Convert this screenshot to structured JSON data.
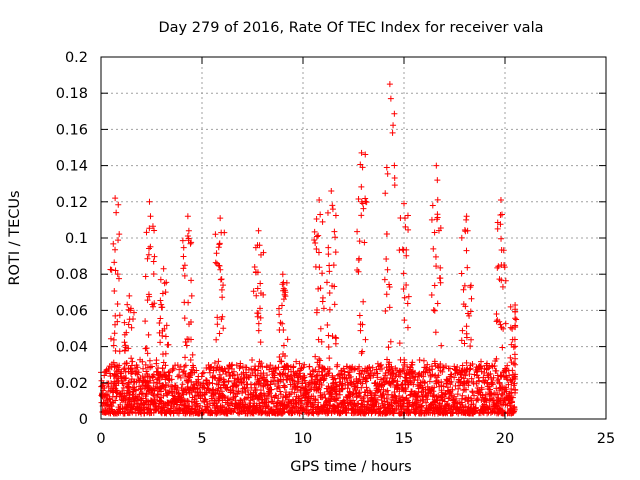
{
  "chart_data": {
    "type": "scatter",
    "title": "Day 279 of 2016, Rate Of TEC Index for receiver vala",
    "xlabel": "GPS time / hours",
    "ylabel": "ROTI / TECUs",
    "xlim": [
      0,
      25
    ],
    "ylim": [
      0,
      0.2
    ],
    "xticks": [
      0,
      5,
      10,
      15,
      20,
      25
    ],
    "xtick_labels": [
      "0",
      "5",
      "10",
      "15",
      "20",
      "25"
    ],
    "yticks": [
      0,
      0.02,
      0.04,
      0.06,
      0.08,
      0.1,
      0.12,
      0.14,
      0.16,
      0.18,
      0.2
    ],
    "ytick_labels": [
      "0",
      "0.02",
      "0.04",
      "0.06",
      "0.08",
      "0.1",
      "0.12",
      "0.14",
      "0.16",
      "0.18",
      "0.2"
    ],
    "grid": true,
    "marker": "+",
    "color": "#ff0000",
    "series": [
      {
        "name": "ROTI",
        "x_range": [
          0,
          20.5
        ],
        "typical_band": [
          0.003,
          0.03
        ],
        "peaks": [
          {
            "x": 0.7,
            "y": 0.122
          },
          {
            "x": 1.4,
            "y": 0.068
          },
          {
            "x": 2.4,
            "y": 0.12
          },
          {
            "x": 3.1,
            "y": 0.083
          },
          {
            "x": 4.3,
            "y": 0.112
          },
          {
            "x": 5.9,
            "y": 0.111
          },
          {
            "x": 7.8,
            "y": 0.104
          },
          {
            "x": 9.0,
            "y": 0.08
          },
          {
            "x": 10.8,
            "y": 0.121
          },
          {
            "x": 11.4,
            "y": 0.126
          },
          {
            "x": 12.9,
            "y": 0.147
          },
          {
            "x": 14.3,
            "y": 0.185
          },
          {
            "x": 15.0,
            "y": 0.119
          },
          {
            "x": 16.6,
            "y": 0.14
          },
          {
            "x": 18.1,
            "y": 0.112
          },
          {
            "x": 19.8,
            "y": 0.121
          },
          {
            "x": 20.5,
            "y": 0.063
          }
        ]
      }
    ]
  }
}
